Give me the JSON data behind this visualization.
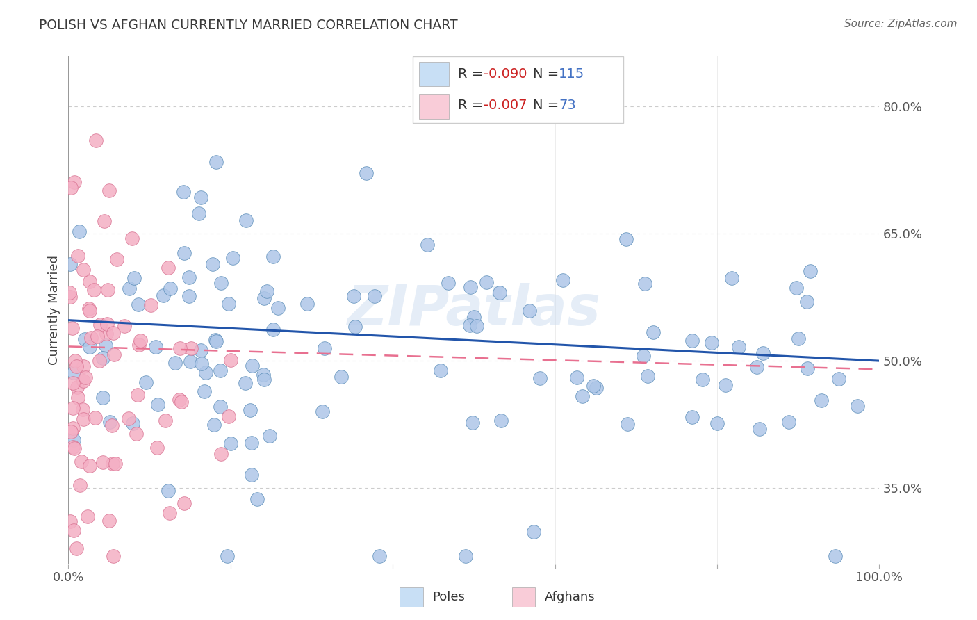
{
  "title": "POLISH VS AFGHAN CURRENTLY MARRIED CORRELATION CHART",
  "source": "Source: ZipAtlas.com",
  "ylabel": "Currently Married",
  "xlim": [
    0.0,
    1.0
  ],
  "ylim": [
    0.26,
    0.86
  ],
  "yticks": [
    0.35,
    0.5,
    0.65,
    0.8
  ],
  "ytick_labels": [
    "35.0%",
    "50.0%",
    "65.0%",
    "80.0%"
  ],
  "xticks": [
    0.0,
    0.2,
    0.4,
    0.6,
    0.8,
    1.0
  ],
  "xtick_labels": [
    "0.0%",
    "",
    "",
    "",
    "",
    "100.0%"
  ],
  "poles_fill_color": "#aec6e8",
  "poles_edge_color": "#5b8db8",
  "afghans_fill_color": "#f4afc4",
  "afghans_edge_color": "#d87090",
  "poles_line_color": "#2255aa",
  "afghans_line_color": "#e87090",
  "legend_poles_bg": "#c8dff5",
  "legend_afghans_bg": "#f9ccd8",
  "poles_R": "-0.090",
  "poles_N": "115",
  "afghans_R": "-0.007",
  "afghans_N": "73",
  "watermark": "ZIPatlas",
  "title_color": "#3a3a3a",
  "R_value_color": "#cc2222",
  "N_value_color": "#4472c4",
  "grid_color": "#cccccc",
  "tick_color": "#555555"
}
